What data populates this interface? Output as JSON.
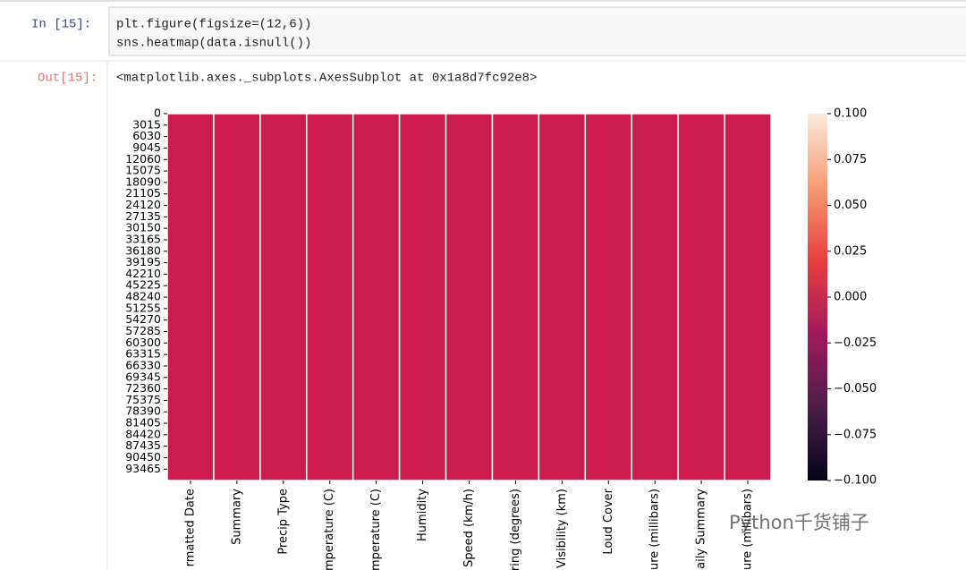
{
  "notebook": {
    "input_prompt": "In  [15]:",
    "code": [
      "plt.figure(figsize=(12,6))",
      "sns.heatmap(data.isnull())"
    ],
    "output_prompt": "Out[15]:",
    "output_text": "<matplotlib.axes._subplots.AxesSubplot at 0x1a8d7fc92e8>",
    "watermark": "Python千货铺子"
  },
  "chart_data": {
    "type": "heatmap",
    "categories": [
      "rmatted Date",
      "Summary",
      "Precip Type",
      "mperature (C)",
      "mperature (C)",
      "Humidity",
      "Speed (km/h)",
      "ring (degrees)",
      "Visibility (km)",
      "Loud Cover",
      "ure (millibars)",
      "aily Summary",
      "ure (millibars)"
    ],
    "values": [
      0,
      0,
      0,
      0,
      0,
      0,
      0,
      0,
      0,
      0,
      0,
      0,
      0
    ],
    "color": "#cb1b4f",
    "ylim": [
      0,
      96453
    ],
    "yticks": [
      0,
      3015,
      6030,
      9045,
      12060,
      15075,
      18090,
      21105,
      24120,
      27135,
      30150,
      33165,
      36180,
      39195,
      42210,
      45225,
      48240,
      51255,
      54270,
      57285,
      60300,
      63315,
      66330,
      69345,
      72360,
      75375,
      78390,
      81405,
      84420,
      87435,
      90450,
      93465
    ],
    "colorbar": {
      "lim": [
        -0.1,
        0.1
      ],
      "ticks": [
        {
          "value": 0.1,
          "label": "0.100"
        },
        {
          "value": 0.075,
          "label": "0.075"
        },
        {
          "value": 0.05,
          "label": "0.050"
        },
        {
          "value": 0.025,
          "label": "0.025"
        },
        {
          "value": 0,
          "label": "0.000"
        },
        {
          "value": -0.025,
          "label": "−0.025"
        },
        {
          "value": -0.05,
          "label": "−0.050"
        },
        {
          "value": -0.075,
          "label": "−0.075"
        },
        {
          "value": -0.1,
          "label": "−0.100"
        }
      ],
      "colors": [
        "#03051a",
        "#4c1d4b",
        "#a11a5b",
        "#e83f3f",
        "#f69c73",
        "#faebdd"
      ]
    }
  }
}
